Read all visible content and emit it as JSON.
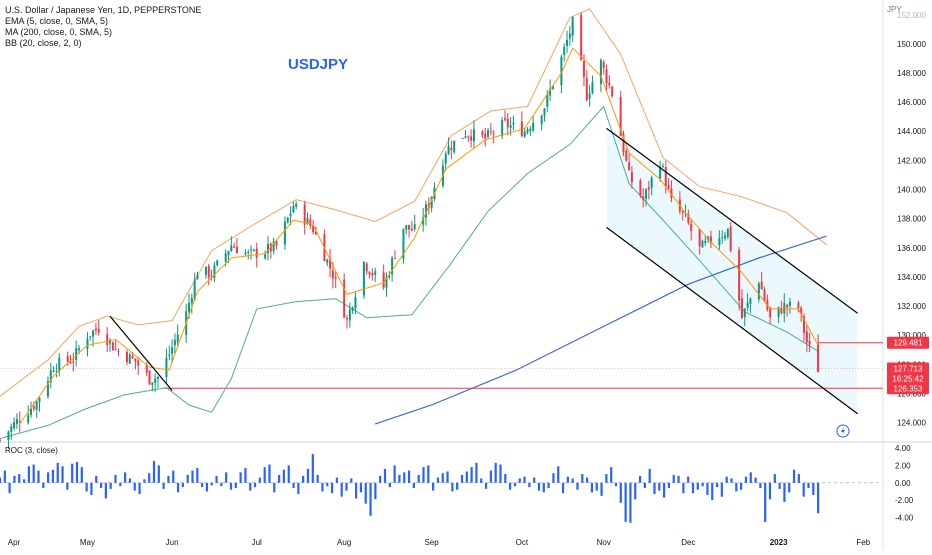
{
  "header": {
    "title": "U.S. Dollar / Japanese Yen, 1D, PEPPERSTONE",
    "indicators": [
      "EMA (5, close, 0, SMA, 5)",
      "MA (200, close, 0, SMA, 5)",
      "BB (20, close, 2, 0)"
    ],
    "symbol_watermark": "USDJPY"
  },
  "colors": {
    "up": "#089981",
    "down": "#f23645",
    "ema": "#ff9800",
    "bb": "#f7a35c",
    "bb_lower": "#4caf8f",
    "ma200": "#3f6ad8",
    "roc": "#2962ff",
    "channel_fill": "#e6f7fb"
  },
  "chart_data": [
    {
      "type": "candlestick",
      "title": "U.S. Dollar / Japanese Yen, 1D, PEPPERSTONE",
      "ylabel": "JPY",
      "ylim": [
        122.8,
        152.6
      ],
      "y_ticks": [
        "150.000",
        "148.000",
        "146.000",
        "144.000",
        "142.000",
        "140.000",
        "138.000",
        "136.000",
        "134.000",
        "132.000",
        "130.000",
        "128.000",
        "126.000",
        "124.000"
      ],
      "x_ticks": [
        "Apr",
        "May",
        "Jun",
        "Jul",
        "Aug",
        "Sep",
        "Oct",
        "Nov",
        "Dec",
        "2023",
        "Feb"
      ],
      "x_range": [
        "2022-04-01",
        "2023-02-08"
      ],
      "price_labels": [
        {
          "value": 129.481,
          "text": "129.481"
        },
        {
          "value": 127.713,
          "text": "127.713"
        },
        {
          "value": 127.713,
          "text": "16:25:42"
        },
        {
          "value": 126.353,
          "text": "126.353"
        }
      ],
      "partial_top_label": "152.000",
      "close_path": [
        [
          "2022-04-01",
          122.8
        ],
        [
          "2022-04-08",
          124.3
        ],
        [
          "2022-04-14",
          125.4
        ],
        [
          "2022-04-20",
          127.9
        ],
        [
          "2022-04-27",
          128.4
        ],
        [
          "2022-05-02",
          130.0
        ],
        [
          "2022-05-06",
          130.5
        ],
        [
          "2022-05-12",
          129.0
        ],
        [
          "2022-05-19",
          128.2
        ],
        [
          "2022-05-24",
          127.0
        ],
        [
          "2022-05-27",
          127.1
        ],
        [
          "2022-05-31",
          128.7
        ],
        [
          "2022-06-06",
          131.5
        ],
        [
          "2022-06-10",
          134.4
        ],
        [
          "2022-06-15",
          134.2
        ],
        [
          "2022-06-22",
          136.2
        ],
        [
          "2022-06-28",
          135.5
        ],
        [
          "2022-07-04",
          135.8
        ],
        [
          "2022-07-08",
          136.1
        ],
        [
          "2022-07-14",
          138.9
        ],
        [
          "2022-07-21",
          137.3
        ],
        [
          "2022-07-28",
          134.2
        ],
        [
          "2022-08-02",
          131.0
        ],
        [
          "2022-08-08",
          135.0
        ],
        [
          "2022-08-15",
          133.3
        ],
        [
          "2022-08-22",
          137.4
        ],
        [
          "2022-08-26",
          137.2
        ],
        [
          "2022-08-31",
          139.0
        ],
        [
          "2022-09-06",
          142.7
        ],
        [
          "2022-09-13",
          143.9
        ],
        [
          "2022-09-20",
          143.5
        ],
        [
          "2022-09-27",
          144.5
        ],
        [
          "2022-10-04",
          144.0
        ],
        [
          "2022-10-11",
          145.7
        ],
        [
          "2022-10-17",
          149.0
        ],
        [
          "2022-10-21",
          151.4
        ],
        [
          "2022-10-26",
          146.5
        ],
        [
          "2022-10-31",
          148.7
        ],
        [
          "2022-11-04",
          146.6
        ],
        [
          "2022-11-10",
          140.9
        ],
        [
          "2022-11-15",
          139.3
        ],
        [
          "2022-11-21",
          142.0
        ],
        [
          "2022-11-25",
          139.1
        ],
        [
          "2022-11-30",
          138.0
        ],
        [
          "2022-12-05",
          135.9
        ],
        [
          "2022-12-09",
          136.5
        ],
        [
          "2022-12-15",
          137.2
        ],
        [
          "2022-12-20",
          131.2
        ],
        [
          "2022-12-26",
          133.8
        ],
        [
          "2022-12-30",
          131.1
        ],
        [
          "2023-01-04",
          132.0
        ],
        [
          "2023-01-09",
          131.9
        ],
        [
          "2023-01-12",
          129.5
        ],
        [
          "2023-01-16",
          127.7
        ]
      ]
    },
    {
      "type": "line",
      "series": [
        {
          "name": "EMA (5, close, 0, SMA, 5)",
          "points": [
            [
              "2022-04-08",
              123.9
            ],
            [
              "2022-04-20",
              127.2
            ],
            [
              "2022-05-02",
              129.3
            ],
            [
              "2022-05-12",
              129.7
            ],
            [
              "2022-05-24",
              127.8
            ],
            [
              "2022-05-31",
              127.6
            ],
            [
              "2022-06-10",
              133.0
            ],
            [
              "2022-06-22",
              135.3
            ],
            [
              "2022-07-04",
              135.6
            ],
            [
              "2022-07-14",
              137.9
            ],
            [
              "2022-07-21",
              137.6
            ],
            [
              "2022-08-02",
              132.8
            ],
            [
              "2022-08-15",
              133.6
            ],
            [
              "2022-08-26",
              136.7
            ],
            [
              "2022-09-06",
              141.4
            ],
            [
              "2022-09-20",
              143.4
            ],
            [
              "2022-10-04",
              144.2
            ],
            [
              "2022-10-17",
              148.0
            ],
            [
              "2022-10-21",
              149.7
            ],
            [
              "2022-10-31",
              147.8
            ],
            [
              "2022-11-10",
              142.5
            ],
            [
              "2022-11-21",
              140.7
            ],
            [
              "2022-11-30",
              138.4
            ],
            [
              "2022-12-09",
              136.4
            ],
            [
              "2022-12-20",
              134.3
            ],
            [
              "2022-12-30",
              131.8
            ],
            [
              "2023-01-09",
              131.8
            ],
            [
              "2023-01-16",
              129.3
            ]
          ]
        },
        {
          "name": "MA (200, close, 0, SMA, 5)",
          "points": [
            [
              "2022-08-12",
              123.9
            ],
            [
              "2022-09-01",
              125.2
            ],
            [
              "2022-10-01",
              127.6
            ],
            [
              "2022-11-01",
              130.6
            ],
            [
              "2022-12-01",
              133.5
            ],
            [
              "2022-12-26",
              135.3
            ],
            [
              "2023-01-19",
              136.8
            ]
          ]
        },
        {
          "name": "BB upper",
          "points": [
            [
              "2022-04-01",
              125.8
            ],
            [
              "2022-04-18",
              128.3
            ],
            [
              "2022-04-29",
              130.6
            ],
            [
              "2022-05-09",
              131.3
            ],
            [
              "2022-05-20",
              130.7
            ],
            [
              "2022-06-01",
              131.0
            ],
            [
              "2022-06-15",
              135.8
            ],
            [
              "2022-06-30",
              137.6
            ],
            [
              "2022-07-15",
              139.3
            ],
            [
              "2022-07-29",
              138.6
            ],
            [
              "2022-08-12",
              137.8
            ],
            [
              "2022-08-26",
              139.2
            ],
            [
              "2022-09-08",
              143.7
            ],
            [
              "2022-09-22",
              145.4
            ],
            [
              "2022-10-05",
              145.7
            ],
            [
              "2022-10-20",
              151.8
            ],
            [
              "2022-10-27",
              152.4
            ],
            [
              "2022-11-07",
              149.3
            ],
            [
              "2022-11-22",
              142.2
            ],
            [
              "2022-12-05",
              140.2
            ],
            [
              "2022-12-20",
              139.5
            ],
            [
              "2023-01-05",
              138.4
            ],
            [
              "2023-01-19",
              136.2
            ]
          ]
        },
        {
          "name": "BB lower",
          "points": [
            [
              "2022-04-01",
              122.9
            ],
            [
              "2022-04-18",
              123.8
            ],
            [
              "2022-05-01",
              124.9
            ],
            [
              "2022-05-15",
              125.9
            ],
            [
              "2022-05-30",
              126.4
            ],
            [
              "2022-06-07",
              125.2
            ],
            [
              "2022-06-15",
              124.7
            ],
            [
              "2022-06-22",
              127.0
            ],
            [
              "2022-07-01",
              131.8
            ],
            [
              "2022-07-15",
              132.3
            ],
            [
              "2022-07-29",
              132.5
            ],
            [
              "2022-08-09",
              131.2
            ],
            [
              "2022-08-25",
              131.4
            ],
            [
              "2022-09-07",
              134.7
            ],
            [
              "2022-09-21",
              138.5
            ],
            [
              "2022-10-05",
              141.1
            ],
            [
              "2022-10-20",
              143.1
            ],
            [
              "2022-11-01",
              145.7
            ],
            [
              "2022-11-10",
              140.4
            ],
            [
              "2022-11-22",
              137.9
            ],
            [
              "2022-12-06",
              134.9
            ],
            [
              "2022-12-21",
              131.6
            ],
            [
              "2023-01-05",
              130.2
            ],
            [
              "2023-01-16",
              128.9
            ]
          ]
        }
      ]
    },
    {
      "type": "bar",
      "title": "ROC (3, close)",
      "ylim": [
        -5.2,
        4.0
      ],
      "y_ticks": [
        "4.00",
        "2.00",
        "0.00",
        "-2.00",
        "-4.00"
      ],
      "values": [
        0.6,
        1.4,
        -1.2,
        0.8,
        1.0,
        0.4,
        1.9,
        2.1,
        1.4,
        -0.6,
        1.2,
        1.5,
        2.3,
        1.9,
        -0.8,
        2.2,
        2.4,
        1.8,
        -1.0,
        -1.4,
        0.8,
        -0.6,
        -1.8,
        -0.7,
        0.9,
        -0.4,
        1.2,
        0.5,
        -0.9,
        -1.3,
        0.4,
        1.1,
        2.5,
        2.0,
        -0.7,
        0.8,
        1.4,
        -1.1,
        -0.5,
        0.9,
        1.4,
        1.7,
        -0.5,
        -1.0,
        -0.3,
        0.8,
        -0.4,
        1.2,
        -0.8,
        -0.6,
        1.2,
        1.7,
        -0.9,
        -0.5,
        0.6,
        1.8,
        2.1,
        -1.1,
        0.9,
        1.5,
        2.0,
        -0.6,
        -1.3,
        0.8,
        1.6,
        3.3,
        0.9,
        -1.0,
        -0.4,
        -1.2,
        0.6,
        -1.6,
        -0.9,
        0.5,
        -1.8,
        -1.1,
        -2.4,
        -3.8,
        -1.9,
        0.8,
        1.6,
        -0.5,
        2.0,
        0.9,
        1.2,
        1.4,
        -0.6,
        0.9,
        1.8,
        2.0,
        -0.9,
        0.6,
        1.1,
        1.3,
        -1.0,
        -0.8,
        0.9,
        1.3,
        1.8,
        2.3,
        0.5,
        -0.7,
        1.4,
        2.3,
        2.1,
        1.0,
        -0.8,
        -0.4,
        0.5,
        0.7,
        -0.5,
        0.6,
        -0.9,
        -1.1,
        -0.6,
        1.1,
        1.9,
        -1.2,
        0.7,
        0.5,
        -0.8,
        1.0,
        0.6,
        -1.1,
        -0.9,
        -1.5,
        1.0,
        1.8,
        -0.4,
        -2.3,
        -4.5,
        -4.6,
        -1.9,
        0.8,
        -0.6,
        1.6,
        -1.3,
        -0.9,
        -1.7,
        -0.6,
        0.9,
        0.8,
        -1.2,
        0.7,
        -1.2,
        -0.8,
        -0.4,
        -1.4,
        -2.0,
        -0.5,
        -1.6,
        0.7,
        0.5,
        -1.0,
        -0.8,
        0.7,
        1.2,
        0.6,
        -0.6,
        -4.5,
        -1.9,
        1.0,
        -0.7,
        -2.2,
        -1.1,
        1.5,
        1.0,
        -1.6,
        -0.6,
        -1.4,
        -3.5
      ]
    }
  ]
}
